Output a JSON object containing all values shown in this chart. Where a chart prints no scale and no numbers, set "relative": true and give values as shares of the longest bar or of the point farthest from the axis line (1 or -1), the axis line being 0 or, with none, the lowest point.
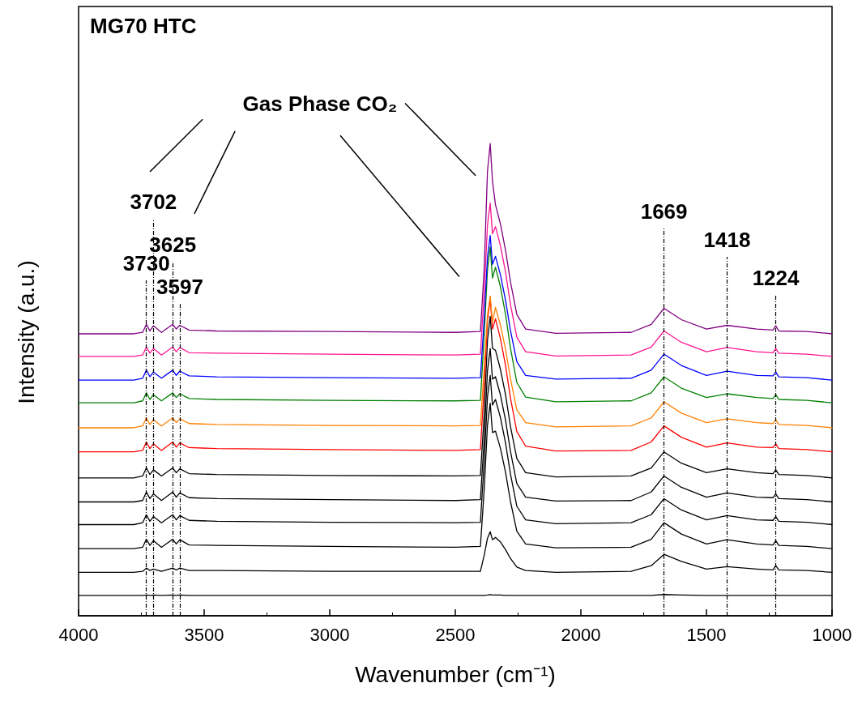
{
  "chart_data": {
    "type": "line",
    "title": "MG70 HTC",
    "xlabel": "Wavenumber (cm⁻¹)",
    "ylabel": "Intensity (a.u.)",
    "relative": true,
    "marker": "none",
    "line_style": "solid",
    "xlim": [
      4000,
      1000
    ],
    "xticks": [
      4000,
      3500,
      3000,
      2500,
      2000,
      1500,
      1000
    ],
    "x": [
      4000,
      3780,
      3745,
      3730,
      3716,
      3702,
      3670,
      3625,
      3611,
      3597,
      3560,
      3450,
      3000,
      2500,
      2400,
      2385,
      2372,
      2361,
      2352,
      2340,
      2320,
      2300,
      2280,
      2255,
      2220,
      2100,
      1800,
      1720,
      1669,
      1600,
      1500,
      1418,
      1300,
      1235,
      1224,
      1212,
      1100,
      1000
    ],
    "series": [
      {
        "color": "#000000",
        "values": [
          0.043,
          0.043,
          0.043,
          0.044,
          0.043,
          0.044,
          0.043,
          0.044,
          0.043,
          0.044,
          0.043,
          0.043,
          0.043,
          0.043,
          0.043,
          0.043,
          0.044,
          0.045,
          0.044,
          0.044,
          0.044,
          0.043,
          0.043,
          0.043,
          0.043,
          0.043,
          0.043,
          0.043,
          0.045,
          0.044,
          0.043,
          0.043,
          0.043,
          0.043,
          0.044,
          0.043,
          0.043,
          0.043
        ]
      },
      {
        "color": "#000000",
        "values": [
          0.092,
          0.092,
          0.094,
          0.101,
          0.096,
          0.099,
          0.094,
          0.101,
          0.097,
          0.101,
          0.096,
          0.096,
          0.094,
          0.094,
          0.094,
          0.128,
          0.164,
          0.178,
          0.161,
          0.166,
          0.156,
          0.14,
          0.121,
          0.103,
          0.096,
          0.092,
          0.094,
          0.106,
          0.13,
          0.115,
          0.099,
          0.104,
          0.099,
          0.097,
          0.106,
          0.097,
          0.096,
          0.092
        ]
      },
      {
        "color": "#000000",
        "values": [
          0.142,
          0.142,
          0.145,
          0.162,
          0.149,
          0.159,
          0.145,
          0.162,
          0.152,
          0.161,
          0.15,
          0.149,
          0.147,
          0.145,
          0.147,
          0.267,
          0.403,
          0.45,
          0.388,
          0.391,
          0.354,
          0.304,
          0.241,
          0.179,
          0.152,
          0.144,
          0.145,
          0.162,
          0.197,
          0.173,
          0.152,
          0.161,
          0.152,
          0.15,
          0.159,
          0.149,
          0.147,
          0.142
        ]
      },
      {
        "color": "#000000",
        "values": [
          0.193,
          0.193,
          0.197,
          0.214,
          0.2,
          0.21,
          0.197,
          0.214,
          0.203,
          0.212,
          0.202,
          0.2,
          0.198,
          0.197,
          0.198,
          0.326,
          0.462,
          0.509,
          0.446,
          0.458,
          0.419,
          0.366,
          0.299,
          0.232,
          0.203,
          0.195,
          0.197,
          0.214,
          0.248,
          0.224,
          0.203,
          0.212,
          0.203,
          0.202,
          0.21,
          0.2,
          0.198,
          0.193
        ]
      },
      {
        "color": "#000000",
        "values": [
          0.241,
          0.241,
          0.244,
          0.262,
          0.248,
          0.258,
          0.244,
          0.262,
          0.251,
          0.26,
          0.25,
          0.248,
          0.246,
          0.244,
          0.246,
          0.374,
          0.518,
          0.566,
          0.501,
          0.506,
          0.467,
          0.414,
          0.347,
          0.28,
          0.251,
          0.243,
          0.244,
          0.262,
          0.296,
          0.272,
          0.251,
          0.26,
          0.251,
          0.25,
          0.258,
          0.248,
          0.246,
          0.241
        ]
      },
      {
        "color": "#000000",
        "values": [
          0.292,
          0.292,
          0.296,
          0.313,
          0.299,
          0.309,
          0.296,
          0.313,
          0.303,
          0.311,
          0.301,
          0.299,
          0.297,
          0.296,
          0.297,
          0.427,
          0.583,
          0.634,
          0.566,
          0.562,
          0.521,
          0.468,
          0.4,
          0.333,
          0.303,
          0.294,
          0.296,
          0.313,
          0.347,
          0.323,
          0.303,
          0.311,
          0.303,
          0.301,
          0.309,
          0.299,
          0.297,
          0.292
        ]
      },
      {
        "color": "#ff0000",
        "values": [
          0.347,
          0.347,
          0.35,
          0.368,
          0.354,
          0.364,
          0.35,
          0.368,
          0.357,
          0.366,
          0.356,
          0.354,
          0.352,
          0.35,
          0.352,
          0.487,
          0.624,
          0.672,
          0.607,
          0.629,
          0.586,
          0.53,
          0.46,
          0.39,
          0.359,
          0.349,
          0.35,
          0.368,
          0.402,
          0.378,
          0.357,
          0.366,
          0.357,
          0.356,
          0.364,
          0.354,
          0.352,
          0.347
        ]
      },
      {
        "color": "#ff8000",
        "values": [
          0.398,
          0.398,
          0.402,
          0.419,
          0.405,
          0.415,
          0.402,
          0.419,
          0.409,
          0.417,
          0.407,
          0.405,
          0.403,
          0.402,
          0.403,
          0.526,
          0.636,
          0.677,
          0.621,
          0.653,
          0.615,
          0.564,
          0.501,
          0.436,
          0.409,
          0.4,
          0.402,
          0.419,
          0.453,
          0.429,
          0.409,
          0.417,
          0.409,
          0.407,
          0.415,
          0.405,
          0.403,
          0.398
        ]
      },
      {
        "color": "#008000",
        "values": [
          0.451,
          0.451,
          0.455,
          0.472,
          0.458,
          0.468,
          0.455,
          0.472,
          0.462,
          0.47,
          0.46,
          0.458,
          0.456,
          0.455,
          0.456,
          0.595,
          0.732,
          0.781,
          0.715,
          0.738,
          0.696,
          0.638,
          0.566,
          0.494,
          0.463,
          0.453,
          0.455,
          0.472,
          0.506,
          0.482,
          0.462,
          0.47,
          0.462,
          0.46,
          0.468,
          0.458,
          0.456,
          0.451
        ]
      },
      {
        "color": "#0000ff",
        "values": [
          0.499,
          0.499,
          0.503,
          0.52,
          0.506,
          0.516,
          0.503,
          0.52,
          0.509,
          0.518,
          0.508,
          0.506,
          0.504,
          0.503,
          0.504,
          0.629,
          0.759,
          0.805,
          0.744,
          0.761,
          0.721,
          0.668,
          0.603,
          0.538,
          0.509,
          0.501,
          0.503,
          0.52,
          0.554,
          0.53,
          0.509,
          0.518,
          0.509,
          0.508,
          0.516,
          0.506,
          0.504,
          0.499
        ]
      },
      {
        "color": "#ff1493",
        "values": [
          0.549,
          0.549,
          0.552,
          0.569,
          0.556,
          0.566,
          0.552,
          0.569,
          0.559,
          0.568,
          0.557,
          0.556,
          0.554,
          0.552,
          0.554,
          0.685,
          0.826,
          0.874,
          0.809,
          0.824,
          0.783,
          0.728,
          0.658,
          0.59,
          0.559,
          0.55,
          0.552,
          0.569,
          0.603,
          0.579,
          0.559,
          0.568,
          0.559,
          0.557,
          0.566,
          0.556,
          0.554,
          0.549
        ]
      },
      {
        "color": "#800080",
        "values": [
          0.597,
          0.597,
          0.6,
          0.617,
          0.603,
          0.614,
          0.6,
          0.617,
          0.607,
          0.615,
          0.605,
          0.603,
          0.602,
          0.6,
          0.602,
          0.733,
          0.94,
          1,
          0.92,
          0.87,
          0.829,
          0.774,
          0.706,
          0.638,
          0.607,
          0.598,
          0.6,
          0.617,
          0.651,
          0.627,
          0.607,
          0.615,
          0.607,
          0.605,
          0.614,
          0.603,
          0.602,
          0.597
        ]
      }
    ],
    "ref_lines": [
      {
        "axis": "x",
        "value": 3730,
        "label": "3730",
        "color": "#000000",
        "line_style": "dashed"
      },
      {
        "axis": "x",
        "value": 3702,
        "label": "3702",
        "color": "#000000",
        "line_style": "dashed"
      },
      {
        "axis": "x",
        "value": 3625,
        "label": "3625",
        "color": "#000000",
        "line_style": "dashed"
      },
      {
        "axis": "x",
        "value": 3597,
        "label": "3597",
        "color": "#000000",
        "line_style": "dashed"
      },
      {
        "axis": "x",
        "value": 1669,
        "label": "1669",
        "color": "#000000",
        "line_style": "dashed"
      },
      {
        "axis": "x",
        "value": 1418,
        "label": "1418",
        "color": "#000000",
        "line_style": "dashed"
      },
      {
        "axis": "x",
        "value": 1224,
        "label": "1224",
        "color": "#000000",
        "line_style": "dashed"
      }
    ],
    "annotations": [
      "Gas Phase CO₂"
    ]
  }
}
